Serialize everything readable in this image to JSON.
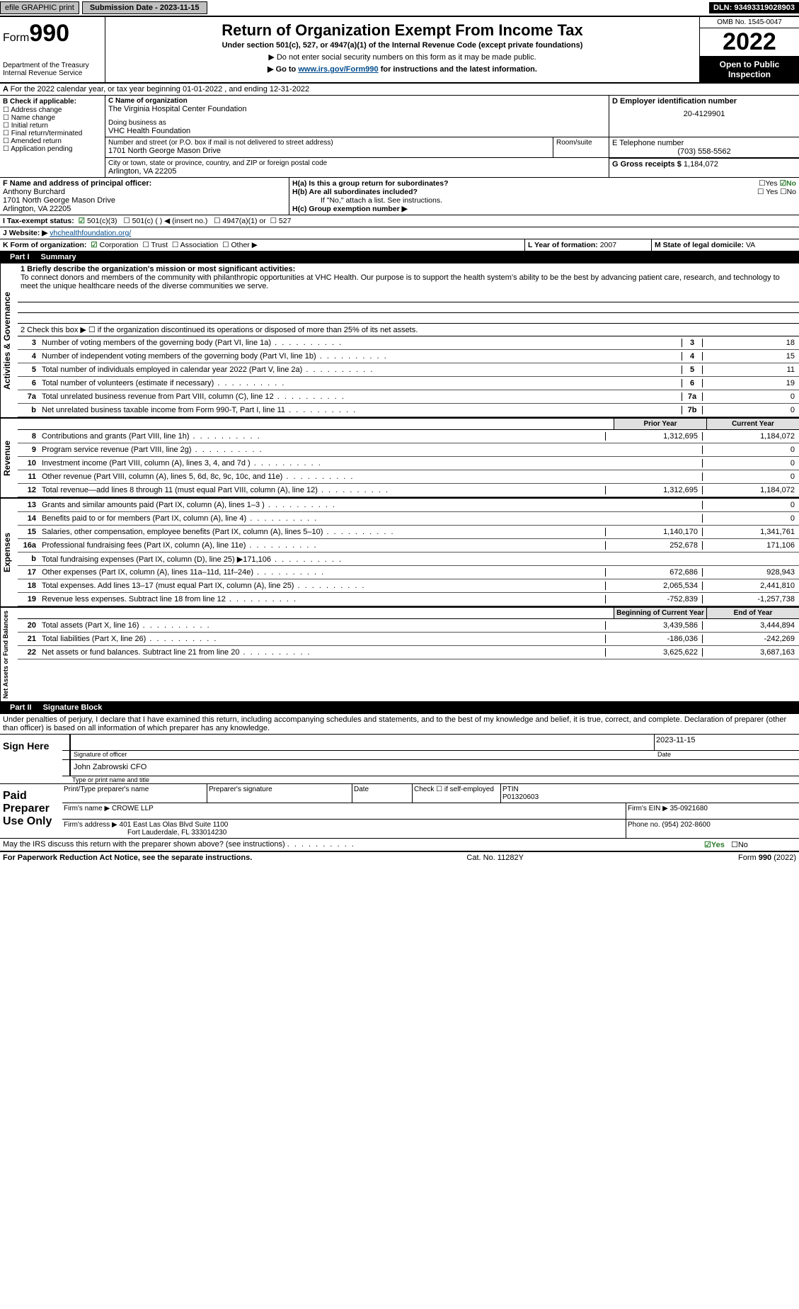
{
  "top_bar": {
    "efile": "efile GRAPHIC print",
    "submission": "Submission Date - 2023-11-15",
    "dln": "DLN: 93493319028903"
  },
  "header": {
    "form_label": "Form",
    "form_number": "990",
    "title": "Return of Organization Exempt From Income Tax",
    "subtitle": "Under section 501(c), 527, or 4947(a)(1) of the Internal Revenue Code (except private foundations)",
    "note1": "▶ Do not enter social security numbers on this form as it may be made public.",
    "note2_pre": "▶ Go to ",
    "note2_link": "www.irs.gov/Form990",
    "note2_post": " for instructions and the latest information.",
    "dept": "Department of the Treasury",
    "irs": "Internal Revenue Service",
    "omb": "OMB No. 1545-0047",
    "year": "2022",
    "open": "Open to Public Inspection"
  },
  "line_a": "For the 2022 calendar year, or tax year beginning 01-01-2022    , and ending 12-31-2022",
  "box_b": {
    "title": "B Check if applicable:",
    "items": [
      "Address change",
      "Name change",
      "Initial return",
      "Final return/terminated",
      "Amended return",
      "Application pending"
    ]
  },
  "box_c": {
    "label": "C Name of organization",
    "name": "The Virginia Hospital Center Foundation",
    "dba_label": "Doing business as",
    "dba": "VHC Health Foundation",
    "addr_label": "Number and street (or P.O. box if mail is not delivered to street address)",
    "room": "Room/suite",
    "addr": "1701 North George Mason Drive",
    "city_label": "City or town, state or province, country, and ZIP or foreign postal code",
    "city": "Arlington, VA  22205"
  },
  "box_d": {
    "label": "D Employer identification number",
    "ein": "20-4129901"
  },
  "box_e": {
    "label": "E Telephone number",
    "phone": "(703) 558-5562"
  },
  "box_g": {
    "label": "G Gross receipts $",
    "val": "1,184,072"
  },
  "box_f": {
    "label": "F Name and address of principal officer:",
    "name": "Anthony Burchard",
    "addr1": "1701 North George Mason Drive",
    "addr2": "Arlington, VA  22205"
  },
  "box_h": {
    "a_label": "H(a)  Is this a group return for subordinates?",
    "a_yes": "☐Yes",
    "a_no": "☑No",
    "b_label": "H(b)  Are all subordinates included?",
    "b_yes": "☐ Yes",
    "b_no": "☐No",
    "note": "If \"No,\" attach a list. See instructions.",
    "c_label": "H(c)  Group exemption number ▶"
  },
  "box_i": {
    "label": "I   Tax-exempt status:",
    "opt1": "501(c)(3)",
    "opt2": "501(c) (  ) ◀ (insert no.)",
    "opt3": "4947(a)(1) or",
    "opt4": "527"
  },
  "box_j": {
    "label": "J   Website: ▶",
    "url": "vhchealthfoundation.org/"
  },
  "box_k": {
    "label": "K Form of organization:",
    "opts": [
      "Corporation",
      "Trust",
      "Association",
      "Other ▶"
    ]
  },
  "box_l": {
    "label": "L Year of formation:",
    "val": "2007"
  },
  "box_m": {
    "label": "M State of legal domicile:",
    "val": "VA"
  },
  "part1": {
    "header": "Part I",
    "title": "Summary",
    "side1": "Activities & Governance",
    "side2": "Revenue",
    "side3": "Expenses",
    "side4": "Net Assets or Fund Balances",
    "line1_label": "1  Briefly describe the organization's mission or most significant activities:",
    "mission": "To connect donors and members of the community with philanthropic opportunities at VHC Health. Our purpose is to support the health system's ability to be the best by advancing patient care, research, and technology to meet the unique healthcare needs of the diverse communities we serve.",
    "line2": "2   Check this box ▶ ☐  if the organization discontinued its operations or disposed of more than 25% of its net assets.",
    "lines_gov": [
      {
        "n": "3",
        "label": "Number of voting members of the governing body (Part VI, line 1a)",
        "box": "3",
        "val": "18"
      },
      {
        "n": "4",
        "label": "Number of independent voting members of the governing body (Part VI, line 1b)",
        "box": "4",
        "val": "15"
      },
      {
        "n": "5",
        "label": "Total number of individuals employed in calendar year 2022 (Part V, line 2a)",
        "box": "5",
        "val": "11"
      },
      {
        "n": "6",
        "label": "Total number of volunteers (estimate if necessary)",
        "box": "6",
        "val": "19"
      },
      {
        "n": "7a",
        "label": "Total unrelated business revenue from Part VIII, column (C), line 12",
        "box": "7a",
        "val": "0"
      },
      {
        "n": "b",
        "label": "Net unrelated business taxable income from Form 990-T, Part I, line 11",
        "box": "7b",
        "val": "0"
      }
    ],
    "col_headers": {
      "prior": "Prior Year",
      "current": "Current Year"
    },
    "lines_rev": [
      {
        "n": "8",
        "label": "Contributions and grants (Part VIII, line 1h)",
        "prior": "1,312,695",
        "cur": "1,184,072"
      },
      {
        "n": "9",
        "label": "Program service revenue (Part VIII, line 2g)",
        "prior": "",
        "cur": "0"
      },
      {
        "n": "10",
        "label": "Investment income (Part VIII, column (A), lines 3, 4, and 7d )",
        "prior": "",
        "cur": "0"
      },
      {
        "n": "11",
        "label": "Other revenue (Part VIII, column (A), lines 5, 6d, 8c, 9c, 10c, and 11e)",
        "prior": "",
        "cur": "0"
      },
      {
        "n": "12",
        "label": "Total revenue—add lines 8 through 11 (must equal Part VIII, column (A), line 12)",
        "prior": "1,312,695",
        "cur": "1,184,072"
      }
    ],
    "lines_exp": [
      {
        "n": "13",
        "label": "Grants and similar amounts paid (Part IX, column (A), lines 1–3 )",
        "prior": "",
        "cur": "0"
      },
      {
        "n": "14",
        "label": "Benefits paid to or for members (Part IX, column (A), line 4)",
        "prior": "",
        "cur": "0"
      },
      {
        "n": "15",
        "label": "Salaries, other compensation, employee benefits (Part IX, column (A), lines 5–10)",
        "prior": "1,140,170",
        "cur": "1,341,761"
      },
      {
        "n": "16a",
        "label": "Professional fundraising fees (Part IX, column (A), line 11e)",
        "prior": "252,678",
        "cur": "171,106"
      },
      {
        "n": "b",
        "label": "Total fundraising expenses (Part IX, column (D), line 25) ▶171,106",
        "prior": "—shade—",
        "cur": "—shade—"
      },
      {
        "n": "17",
        "label": "Other expenses (Part IX, column (A), lines 11a–11d, 11f–24e)",
        "prior": "672,686",
        "cur": "928,943"
      },
      {
        "n": "18",
        "label": "Total expenses. Add lines 13–17 (must equal Part IX, column (A), line 25)",
        "prior": "2,065,534",
        "cur": "2,441,810"
      },
      {
        "n": "19",
        "label": "Revenue less expenses. Subtract line 18 from line 12",
        "prior": "-752,839",
        "cur": "-1,257,738"
      }
    ],
    "col_headers2": {
      "begin": "Beginning of Current Year",
      "end": "End of Year"
    },
    "lines_net": [
      {
        "n": "20",
        "label": "Total assets (Part X, line 16)",
        "prior": "3,439,586",
        "cur": "3,444,894"
      },
      {
        "n": "21",
        "label": "Total liabilities (Part X, line 26)",
        "prior": "-186,036",
        "cur": "-242,269"
      },
      {
        "n": "22",
        "label": "Net assets or fund balances. Subtract line 21 from line 20",
        "prior": "3,625,622",
        "cur": "3,687,163"
      }
    ]
  },
  "part2": {
    "header": "Part II",
    "title": "Signature Block",
    "declaration": "Under penalties of perjury, I declare that I have examined this return, including accompanying schedules and statements, and to the best of my knowledge and belief, it is true, correct, and complete. Declaration of preparer (other than officer) is based on all information of which preparer has any knowledge.",
    "sign_here": "Sign Here",
    "sig_officer": "Signature of officer",
    "sig_date": "2023-11-15",
    "date_label": "Date",
    "officer_name": "John Zabrowski  CFO",
    "type_name": "Type or print name and title",
    "paid": "Paid Preparer Use Only",
    "pp_name_label": "Print/Type preparer's name",
    "pp_sig_label": "Preparer's signature",
    "pp_date_label": "Date",
    "pp_check": "Check ☐ if self-employed",
    "ptin_label": "PTIN",
    "ptin": "P01320603",
    "firm_name_label": "Firm's name    ▶",
    "firm_name": "CROWE LLP",
    "firm_ein_label": "Firm's EIN ▶",
    "firm_ein": "35-0921680",
    "firm_addr_label": "Firm's address ▶",
    "firm_addr1": "401 East Las Olas Blvd Suite 1100",
    "firm_addr2": "Fort Lauderdale, FL  333014230",
    "phone_label": "Phone no.",
    "phone": "(954) 202-8600",
    "discuss": "May the IRS discuss this return with the preparer shown above? (see instructions)",
    "yes": "☑Yes",
    "no": "☐No"
  },
  "footer": {
    "left": "For Paperwork Reduction Act Notice, see the separate instructions.",
    "mid": "Cat. No. 11282Y",
    "right_form": "Form",
    "right_num": "990",
    "right_year": "(2022)"
  }
}
